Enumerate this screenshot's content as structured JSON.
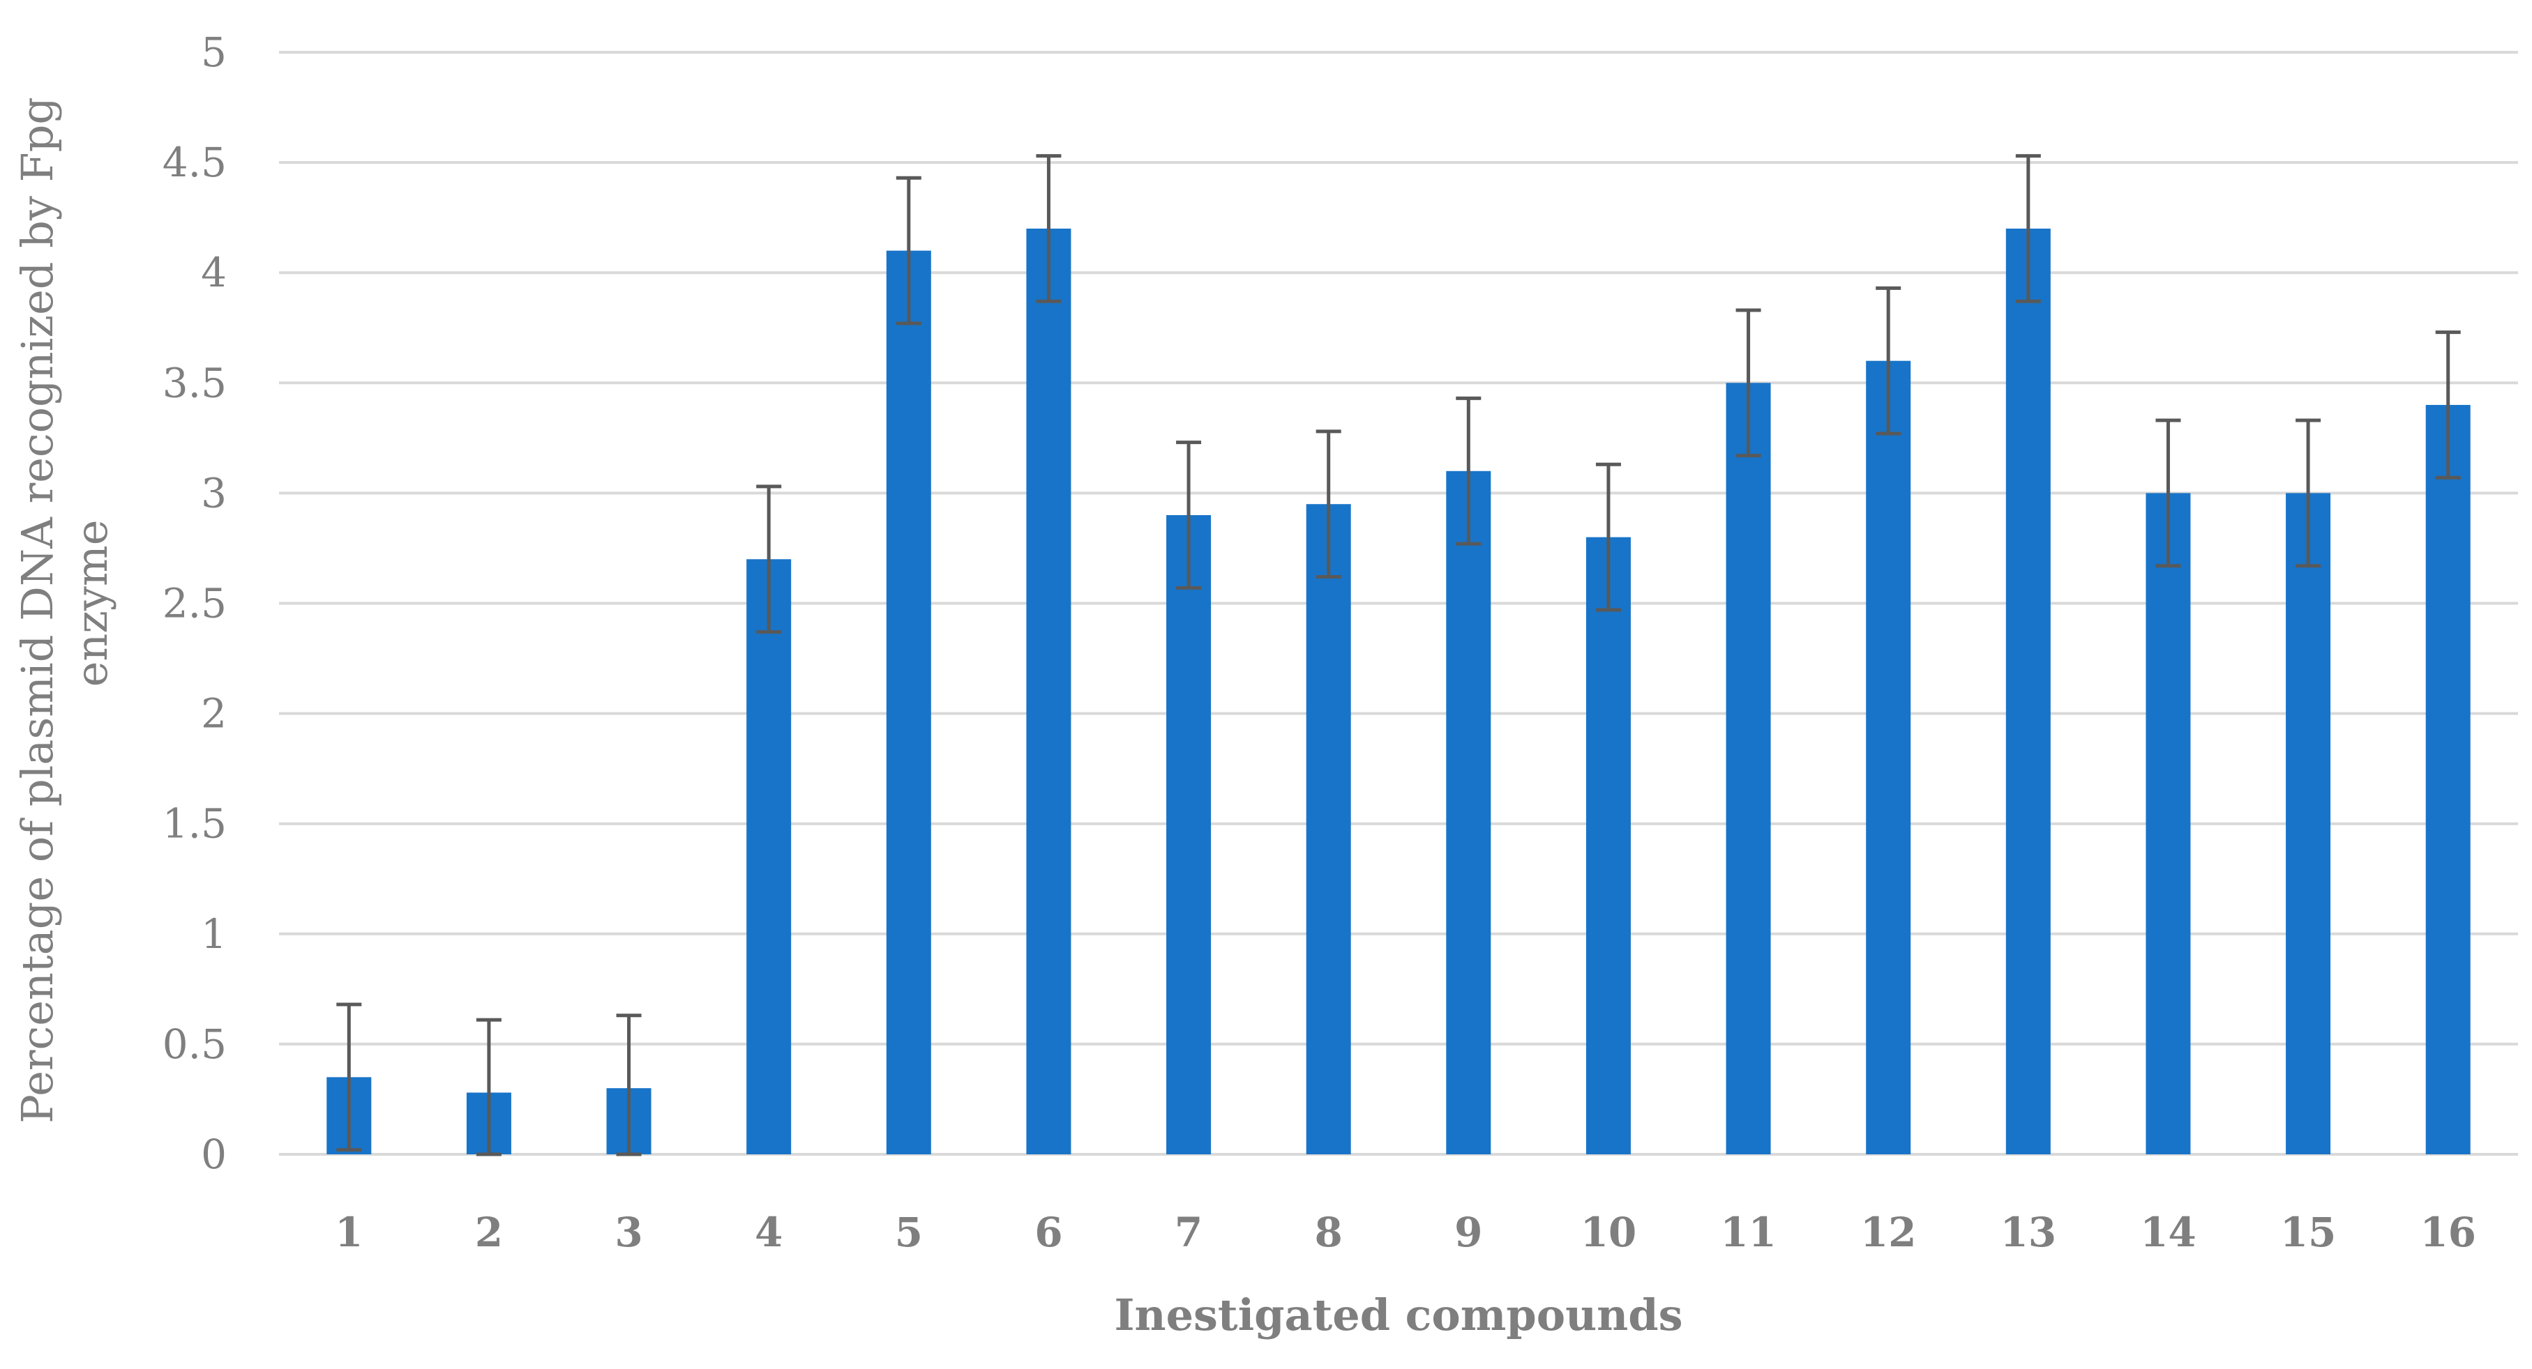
{
  "chart_data": {
    "type": "bar",
    "title": "",
    "xlabel": "Inestigated compounds",
    "ylabel_lines": [
      "Percentage of plasmid DNA recognized by Fpg",
      "enzyme"
    ],
    "categories": [
      "1",
      "2",
      "3",
      "4",
      "5",
      "6",
      "7",
      "8",
      "9",
      "10",
      "11",
      "12",
      "13",
      "14",
      "15",
      "16"
    ],
    "values": [
      0.35,
      0.28,
      0.3,
      2.7,
      4.1,
      4.2,
      2.9,
      2.95,
      3.1,
      2.8,
      3.5,
      3.6,
      4.2,
      3.0,
      3.0,
      3.4
    ],
    "error": [
      0.33,
      0.33,
      0.33,
      0.33,
      0.33,
      0.33,
      0.33,
      0.33,
      0.33,
      0.33,
      0.33,
      0.33,
      0.33,
      0.33,
      0.33,
      0.33
    ],
    "ylim": [
      0,
      5
    ],
    "yticks": [
      "0",
      "0.5",
      "1",
      "1.5",
      "2",
      "2.5",
      "3",
      "3.5",
      "4",
      "4.5",
      "5"
    ],
    "grid": true,
    "legend": "none",
    "colors": {
      "bar": "#1874c8",
      "error": "#595959",
      "grid": "#d9d9d9",
      "text": "#7f7f7f"
    }
  }
}
